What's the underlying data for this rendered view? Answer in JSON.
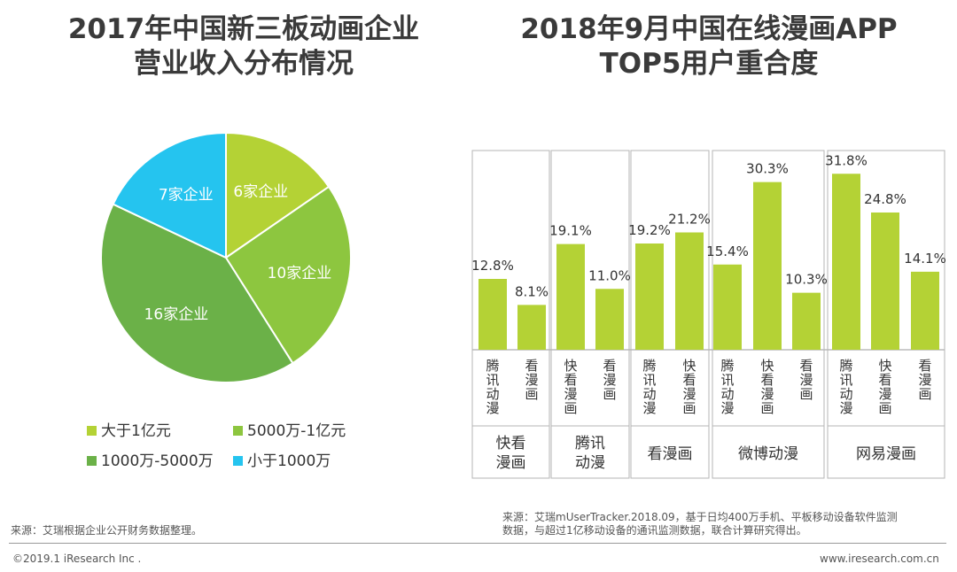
{
  "left_title": [
    "2017年中国新三板动画企业",
    "营业收入分布情况"
  ],
  "right_title": [
    "2018年9月中国在线漫画APP",
    "TOP5用户重合度"
  ],
  "chart_data": [
    {
      "type": "pie",
      "title": "2017年中国新三板动画企业营业收入分布情况",
      "categories": [
        "大于1亿元",
        "5000万-1亿元",
        "1000万-5000万",
        "小于1000万"
      ],
      "values": [
        6,
        10,
        16,
        7
      ],
      "slice_labels": [
        "6家企业",
        "10家企业",
        "16家企业",
        "7家企业"
      ],
      "colors": [
        "#b4d235",
        "#8dc63f",
        "#6bb148",
        "#25c4ef"
      ],
      "legend_position": "bottom"
    },
    {
      "type": "bar",
      "title": "2018年9月中国在线漫画APP TOP5用户重合度",
      "ylim": [
        0,
        35
      ],
      "bar_color": "#b4d235",
      "groups": [
        {
          "name": "快看漫画",
          "name_lines": [
            "快看",
            "漫画"
          ],
          "bars": [
            {
              "label": "腾讯动漫",
              "value": 12.8,
              "display": "12.8%"
            },
            {
              "label": "看漫画",
              "value": 8.1,
              "display": "8.1%"
            }
          ]
        },
        {
          "name": "腾讯动漫",
          "name_lines": [
            "腾讯",
            "动漫"
          ],
          "bars": [
            {
              "label": "快看漫画",
              "value": 19.1,
              "display": "19.1%"
            },
            {
              "label": "看漫画",
              "value": 11.0,
              "display": "11.0%"
            }
          ]
        },
        {
          "name": "看漫画",
          "name_lines": [
            "看漫画"
          ],
          "bars": [
            {
              "label": "腾讯动漫",
              "value": 19.2,
              "display": "19.2%"
            },
            {
              "label": "快看漫画",
              "value": 21.2,
              "display": "21.2%"
            }
          ]
        },
        {
          "name": "微博动漫",
          "name_lines": [
            "微博动漫"
          ],
          "bars": [
            {
              "label": "腾讯动漫",
              "value": 15.4,
              "display": "15.4%"
            },
            {
              "label": "快看漫画",
              "value": 30.3,
              "display": "30.3%"
            },
            {
              "label": "看漫画",
              "value": 10.3,
              "display": "10.3%"
            }
          ]
        },
        {
          "name": "网易漫画",
          "name_lines": [
            "网易漫画"
          ],
          "bars": [
            {
              "label": "腾讯动漫",
              "value": 31.8,
              "display": "31.8%"
            },
            {
              "label": "快看漫画",
              "value": 24.8,
              "display": "24.8%"
            },
            {
              "label": "看漫画",
              "value": 14.1,
              "display": "14.1%"
            }
          ]
        }
      ]
    }
  ],
  "source_left": "来源：艾瑞根据企业公开财务数据整理。",
  "source_right": [
    "来源：艾瑞mUserTracker.2018.09，基于日均400万手机、平板移动设备软件监测",
    "数据，与超过1亿移动设备的通讯监测数据，联合计算研究得出。"
  ],
  "copyright": "©2019.1 iResearch Inc .",
  "website": "www.iresearch.com.cn"
}
